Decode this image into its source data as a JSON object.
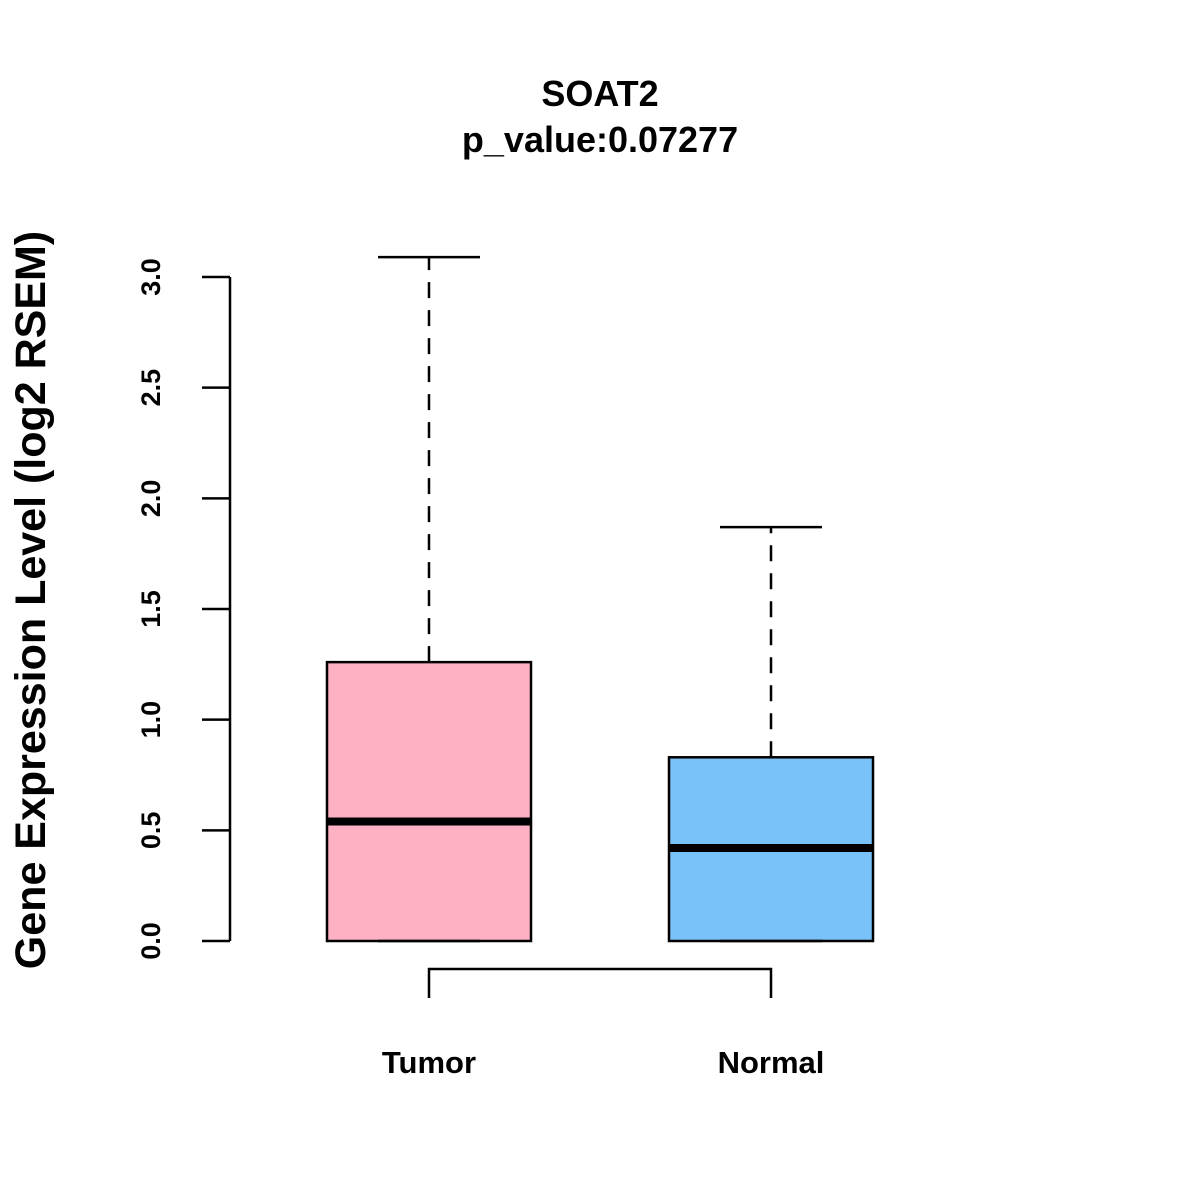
{
  "chart_data": {
    "type": "boxplot",
    "title": "SOAT2",
    "subtitle": "p_value:0.07277",
    "ylabel": "Gene Expression Level (log2 RSEM)",
    "xlabel": "",
    "ylim": [
      0,
      3.0
    ],
    "yticks": [
      0.0,
      0.5,
      1.0,
      1.5,
      2.0,
      2.5,
      3.0
    ],
    "ytick_labels": [
      "0.0",
      "0.5",
      "1.0",
      "1.5",
      "2.0",
      "2.5",
      "3.0"
    ],
    "categories": [
      "Tumor",
      "Normal"
    ],
    "boxes": [
      {
        "name": "Tumor",
        "min": 0.0,
        "q1": 0.0,
        "median": 0.54,
        "q3": 1.26,
        "max": 3.09,
        "color": "#FDB1C3"
      },
      {
        "name": "Normal",
        "min": 0.0,
        "q1": 0.0,
        "median": 0.42,
        "q3": 0.83,
        "max": 1.87,
        "color": "#79C1F9"
      }
    ],
    "comparison_bracket": [
      "Tumor",
      "Normal"
    ],
    "grid": false
  }
}
